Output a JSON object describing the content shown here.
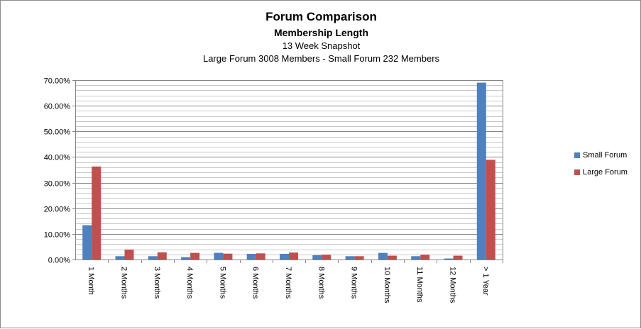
{
  "chart_data": {
    "type": "bar",
    "title": "Forum Comparison",
    "subtitle": "Membership Length",
    "subtitle2": "13 Week Snapshot",
    "subtitle3": "Large Forum 3008  Members  - Small Forum 232 Members",
    "xlabel": "",
    "ylabel": "",
    "categories": [
      "1 Month",
      "2 Months",
      "3 Months",
      "4 Months",
      "5 Months",
      "6 Months",
      "7 Months",
      "8 Months",
      "9 Months",
      "10 Months",
      "11 Months",
      "12 Months",
      "> 1 Year"
    ],
    "series": [
      {
        "name": "Small Forum",
        "color": "#4f81bd",
        "values": [
          13.4,
          1.3,
          1.3,
          0.9,
          2.6,
          2.2,
          2.2,
          1.7,
          1.3,
          2.6,
          1.3,
          0.4,
          69.0
        ]
      },
      {
        "name": "Large Forum",
        "color": "#c0504d",
        "values": [
          36.3,
          3.9,
          2.8,
          2.6,
          2.3,
          2.4,
          2.7,
          1.9,
          1.3,
          1.5,
          1.9,
          1.5,
          38.9
        ]
      }
    ],
    "ylim": [
      0,
      70
    ],
    "yticks": [
      "0.00%",
      "10.00%",
      "20.00%",
      "30.00%",
      "40.00%",
      "50.00%",
      "60.00%",
      "70.00%"
    ],
    "grid": true,
    "minor_grid": true,
    "legend_position": "right"
  }
}
